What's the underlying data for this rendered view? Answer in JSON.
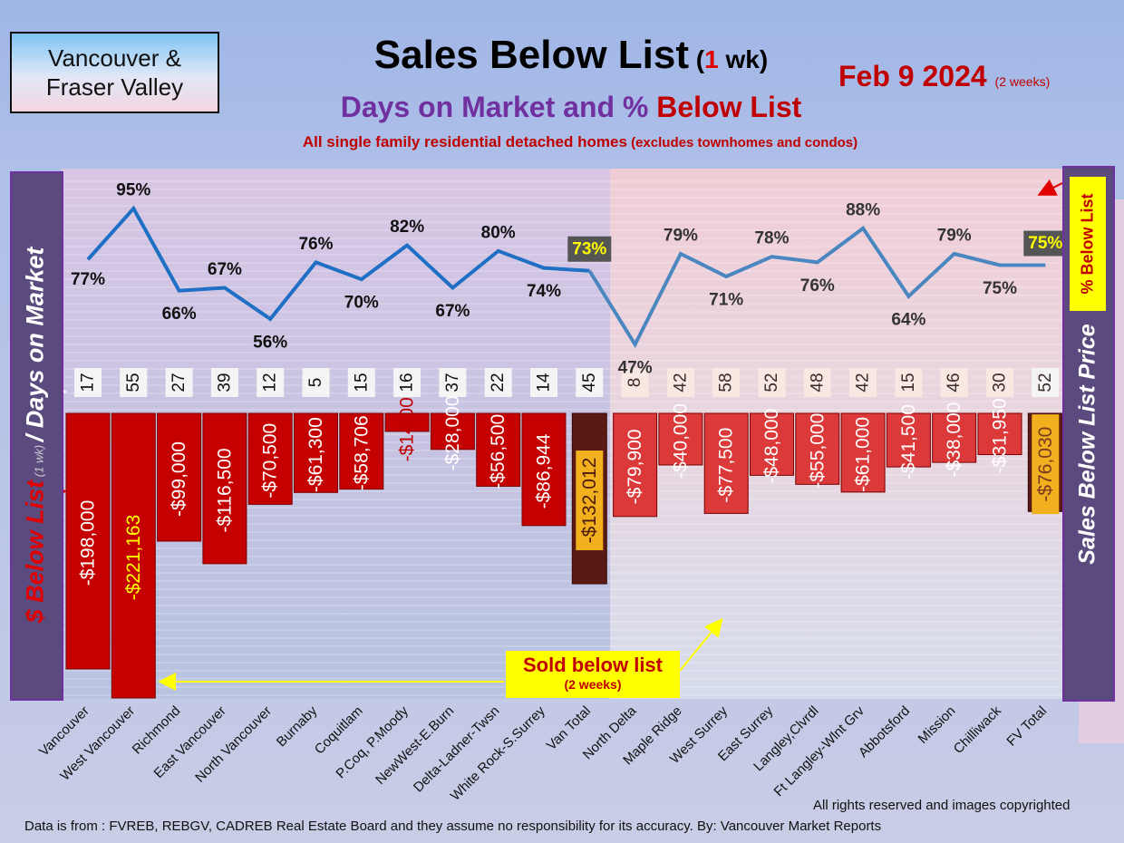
{
  "header": {
    "region_line1": "Vancouver &",
    "region_line2": "Fraser Valley",
    "title_main": "Sales Below List",
    "title_paren_open": " (",
    "title_paren_num": "1",
    "title_paren_rest": " wk)",
    "date": "Feb 9  2024",
    "date_note": "(2 weeks)",
    "subtitle_part1": "Days on Market and % ",
    "subtitle_part2": "Below List",
    "note_main": "All single family residential detached homes",
    "note_paren": " (excludes townhomes and condos)"
  },
  "side_labels": {
    "left_part1": "$ Below List",
    "left_part2": " (1 wk) ",
    "left_part3": "/ Days on Market",
    "right": "Sales Below List Price",
    "pct_legend": "% Below List"
  },
  "callout": {
    "line1": "Sold below list",
    "line2": "(2 weeks)"
  },
  "footer": {
    "copyright": "All rights reserved and  images copyrighted",
    "source": "Data is from : FVREB, REBGV, CADREB Real Estate Board and they assume no responsibility for its accuracy. By: Vancouver Market Reports"
  },
  "colors": {
    "van_bar": "#c40000",
    "fv_bar": "#dc3a3a",
    "total_bar": "#5a1a14",
    "van_line": "#1f6fc4",
    "fv_line": "#4a86c0",
    "total_label_bg": "#f2b01e"
  },
  "chart_data": {
    "type": "bar",
    "categories": [
      "Vancouver",
      "West Vancouver",
      "Richmond",
      "East Vancouver",
      "North Vancouver",
      "Burnaby",
      "Coquitlam",
      "P.Coq, P.Moody",
      "NewWest-E.Burn",
      "Delta-Ladner-Twsn",
      "White Rock-S.Surrey",
      "Van Total",
      "North Delta",
      "Maple Ridge",
      "West Surrey",
      "East Surrey",
      "Langley,Clvrdl",
      "Ft Langley-Wlnt Grv",
      "Abbotsford",
      "Mission",
      "Chilliwack",
      "FV Total"
    ],
    "series": [
      {
        "values": [
          -198000,
          -221163,
          -99000,
          -116500,
          -70500,
          -61300,
          -58706,
          -14000,
          -28000,
          -56500,
          -86944,
          -132012,
          -79900,
          -40000,
          -77500,
          -48000,
          -55000,
          -61000,
          -41500,
          -38000,
          -31950,
          -76030
        ]
      },
      {
        "values": [
          77,
          95,
          66,
          67,
          56,
          76,
          70,
          82,
          67,
          80,
          74,
          73,
          47,
          79,
          71,
          78,
          76,
          88,
          64,
          79,
          75,
          75
        ]
      },
      {
        "values": [
          17,
          55,
          27,
          39,
          12,
          5,
          15,
          16,
          37,
          22,
          14,
          45,
          8,
          42,
          58,
          52,
          48,
          42,
          15,
          46,
          30,
          52
        ]
      }
    ],
    "bar_labels": [
      "-$198,000",
      "-$221,163",
      "-$99,000",
      "-$116,500",
      "-$70,500",
      "-$61,300",
      "-$58,706",
      "-$14,000",
      "-$28,000",
      "-$56,500",
      "-$86,944",
      "-$132,012",
      "-$79,900",
      "-$40,000",
      "-$77,500",
      "-$48,000",
      "-$55,000",
      "-$61,000",
      "-$41,500",
      "-$38,000",
      "-$31,950",
      "-$76,030"
    ],
    "pct_labels": [
      "77%",
      "95%",
      "66%",
      "67%",
      "56%",
      "76%",
      "70%",
      "82%",
      "67%",
      "80%",
      "74%",
      "73%",
      "47%",
      "79%",
      "71%",
      "78%",
      "76%",
      "88%",
      "64%",
      "79%",
      "75%",
      "75%"
    ],
    "dom_labels": [
      "17",
      "55",
      "27",
      "39",
      "12",
      "5",
      "15",
      "16",
      "37",
      "22",
      "14",
      "45",
      "8",
      "42",
      "58",
      "52",
      "48",
      "42",
      "15",
      "46",
      "30",
      "52"
    ],
    "total_indices": [
      11,
      21
    ],
    "van_count": 12,
    "legend": "none",
    "grid": true
  }
}
